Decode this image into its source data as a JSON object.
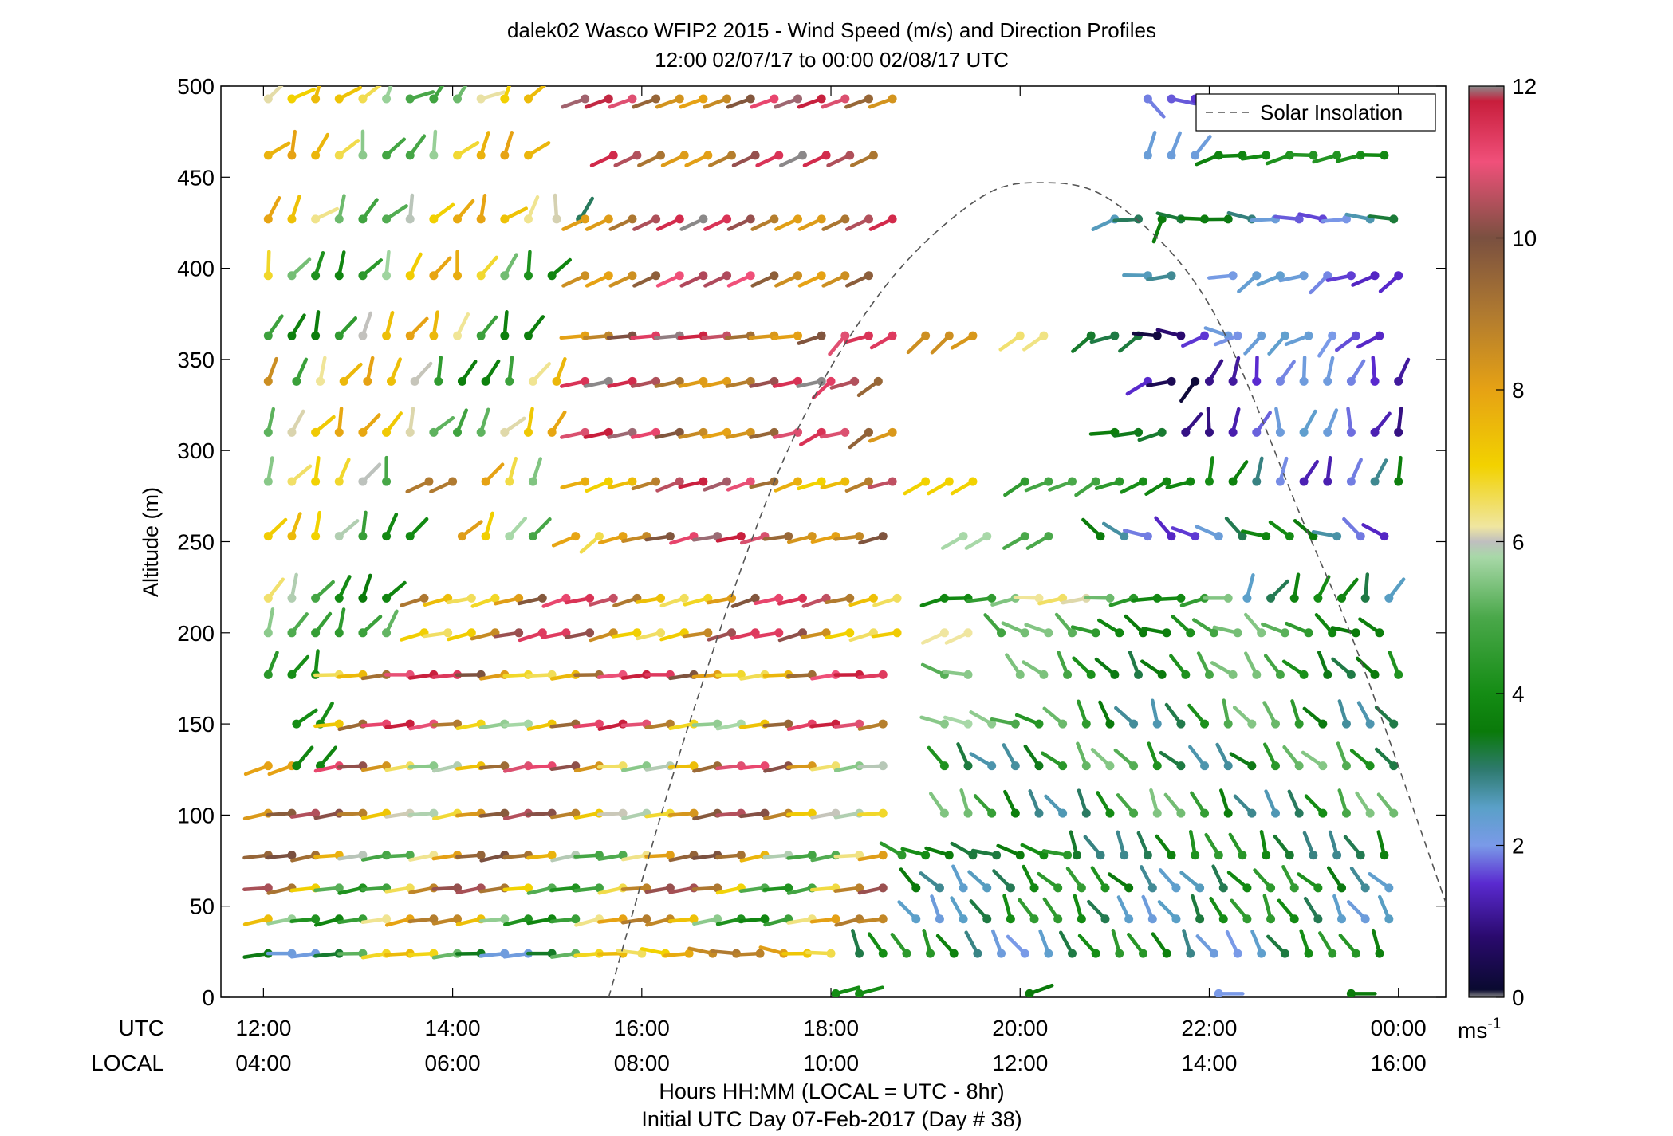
{
  "chart_data": {
    "type": "wind-barb profile (scatter with direction sticks)",
    "title_line1": "dalek02 Wasco WFIP2 2015 - Wind Speed (m/s) and Direction Profiles",
    "title_line2": "12:00 02/07/17 to 00:00 02/08/17  UTC",
    "ylabel": "Altitude (m)",
    "ylim": [
      0,
      500
    ],
    "yticks": [
      "0",
      "50",
      "100",
      "150",
      "200",
      "250",
      "300",
      "350",
      "400",
      "450",
      "500"
    ],
    "xlim_hours": [
      11.55,
      24.5
    ],
    "x_row_label_utc": "UTC",
    "x_row_label_local": "LOCAL",
    "xticks_utc": [
      "12:00",
      "14:00",
      "16:00",
      "18:00",
      "20:00",
      "22:00",
      "00:00"
    ],
    "xticks_local": [
      "04:00",
      "06:00",
      "08:00",
      "10:00",
      "12:00",
      "14:00",
      "16:00"
    ],
    "xlabel_line1": "Hours HH:MM  (LOCAL = UTC - 8hr)",
    "xlabel_line2": "Initial UTC Day 07-Feb-2017 (Day # 38)",
    "legend": {
      "label": "Solar Insolation",
      "placement": "top-right",
      "style": "dashed gray line"
    },
    "colorbar": {
      "range": [
        0,
        12
      ],
      "ticks": [
        "0",
        "2",
        "4",
        "6",
        "8",
        "10",
        "12"
      ],
      "unit_label": "ms",
      "unit_exponent": "-1",
      "stops": [
        {
          "v": 0.0,
          "c": "#8a8a8a"
        },
        {
          "v": 0.1,
          "c": "#0a0a30"
        },
        {
          "v": 0.8,
          "c": "#2a0a6e"
        },
        {
          "v": 1.5,
          "c": "#5a2ad0"
        },
        {
          "v": 2.0,
          "c": "#7a9ae8"
        },
        {
          "v": 2.5,
          "c": "#5aa0c8"
        },
        {
          "v": 3.0,
          "c": "#2e7a6e"
        },
        {
          "v": 3.5,
          "c": "#0a7a0a"
        },
        {
          "v": 4.0,
          "c": "#148c14"
        },
        {
          "v": 5.0,
          "c": "#4aa84a"
        },
        {
          "v": 5.8,
          "c": "#a8d8a8"
        },
        {
          "v": 6.0,
          "c": "#bfbfbf"
        },
        {
          "v": 6.2,
          "c": "#f0e6a0"
        },
        {
          "v": 7.0,
          "c": "#f2d200"
        },
        {
          "v": 8.0,
          "c": "#e6a214"
        },
        {
          "v": 9.0,
          "c": "#b07a30"
        },
        {
          "v": 10.0,
          "c": "#7a5040"
        },
        {
          "v": 11.0,
          "c": "#f0507a"
        },
        {
          "v": 11.8,
          "c": "#c81e3c"
        },
        {
          "v": 12.0,
          "c": "#8a8a8a"
        }
      ]
    },
    "solar_insolation_curve": {
      "style": "dashed",
      "points_hour_alt": [
        [
          15.65,
          0
        ],
        [
          16.5,
          150
        ],
        [
          17.5,
          295
        ],
        [
          18.5,
          385
        ],
        [
          19.5,
          436
        ],
        [
          20.2,
          447
        ],
        [
          21.0,
          436
        ],
        [
          22.0,
          380
        ],
        [
          23.0,
          260
        ],
        [
          23.6,
          185
        ],
        [
          24.5,
          52
        ]
      ]
    },
    "rows": [
      {
        "alt": 493,
        "segments": [
          [
            12.05,
            14.85,
            45,
            4.8,
            7.5,
            30
          ],
          [
            15.4,
            18.75,
            250,
            8,
            12,
            0
          ],
          [
            21.35,
            22.05,
            120,
            1.5,
            2,
            20
          ]
        ]
      },
      {
        "alt": 462,
        "segments": [
          [
            12.05,
            14.9,
            30,
            4.8,
            8,
            30
          ],
          [
            15.7,
            18.6,
            245,
            8,
            12,
            0
          ],
          [
            21.35,
            22.0,
            25,
            2.2,
            2.4,
            15
          ],
          [
            22.1,
            23.9,
            260,
            3.7,
            4.3,
            12
          ]
        ]
      },
      {
        "alt": 427,
        "segments": [
          [
            12.05,
            14.9,
            35,
            4.8,
            8,
            30
          ],
          [
            15.1,
            15.35,
            20,
            1.3,
            10.5,
            25
          ],
          [
            15.4,
            18.75,
            245,
            8,
            12,
            0
          ],
          [
            21.0,
            21.5,
            240,
            2.2,
            3.8,
            40
          ],
          [
            21.7,
            24.0,
            275,
            1.6,
            3.6,
            10
          ]
        ]
      },
      {
        "alt": 396,
        "segments": [
          [
            12.05,
            15.25,
            25,
            3.8,
            8,
            25
          ],
          [
            15.4,
            18.6,
            245,
            8,
            12,
            0
          ],
          [
            21.35,
            21.75,
            260,
            2.5,
            3.3,
            15
          ],
          [
            22.25,
            24.0,
            245,
            1.4,
            2.4,
            20
          ]
        ]
      },
      {
        "alt": 363,
        "segments": [
          [
            12.05,
            15.0,
            25,
            3.5,
            8,
            20
          ],
          [
            15.4,
            17.8,
            265,
            8,
            12,
            0
          ],
          [
            17.9,
            18.75,
            240,
            8.5,
            11.5,
            20
          ],
          [
            19.0,
            19.5,
            230,
            7.5,
            8.5,
            10
          ],
          [
            20.0,
            20.3,
            235,
            6.2,
            6.5,
            0
          ],
          [
            20.75,
            21.3,
            240,
            3.2,
            3.9,
            15
          ],
          [
            21.45,
            22.2,
            270,
            0.2,
            2.4,
            25
          ],
          [
            22.3,
            24.0,
            230,
            1.4,
            2.4,
            20
          ]
        ]
      },
      {
        "alt": 338,
        "segments": [
          [
            12.05,
            12.2,
            20,
            8.5,
            8.5,
            0
          ],
          [
            12.35,
            15.25,
            25,
            3.5,
            8,
            20
          ],
          [
            15.4,
            17.9,
            258,
            8,
            12,
            0
          ],
          [
            18.0,
            18.7,
            240,
            8.5,
            11.5,
            15
          ],
          [
            21.35,
            21.9,
            240,
            0.2,
            3.7,
            25
          ],
          [
            22.0,
            24.0,
            15,
            1.0,
            2.2,
            20
          ]
        ]
      },
      {
        "alt": 310,
        "segments": [
          [
            12.05,
            15.25,
            30,
            4.8,
            8,
            25
          ],
          [
            15.4,
            17.8,
            258,
            8,
            12,
            0
          ],
          [
            17.9,
            18.7,
            245,
            7.5,
            11.5,
            15
          ],
          [
            21.0,
            21.6,
            260,
            3.3,
            3.8,
            10
          ],
          [
            21.75,
            24.0,
            15,
            0.9,
            2.4,
            25
          ]
        ]
      },
      {
        "alt": 283,
        "segments": [
          [
            12.05,
            13.5,
            25,
            4.0,
            7,
            25
          ],
          [
            13.75,
            14.2,
            245,
            9.0,
            9.0,
            0
          ],
          [
            14.35,
            14.85,
            25,
            5.0,
            9.0,
            20
          ],
          [
            15.4,
            18.75,
            252,
            7,
            12,
            5
          ],
          [
            19.0,
            19.6,
            240,
            7.0,
            7.0,
            0
          ],
          [
            20.05,
            21.9,
            245,
            3.8,
            5.0,
            10
          ],
          [
            22.0,
            24.0,
            20,
            1.2,
            4.0,
            15
          ]
        ]
      },
      {
        "alt": 253,
        "segments": [
          [
            12.05,
            13.6,
            25,
            3.8,
            7.5,
            25
          ],
          [
            14.1,
            14.85,
            35,
            4.8,
            8.5,
            20
          ],
          [
            15.3,
            15.75,
            245,
            6.3,
            11.5,
            20
          ],
          [
            15.8,
            18.75,
            258,
            8,
            12,
            5
          ],
          [
            19.4,
            19.7,
            240,
            5.8,
            5.8,
            0
          ],
          [
            20.05,
            20.3,
            240,
            5.0,
            5.0,
            0
          ],
          [
            20.85,
            24.0,
            300,
            1.4,
            4.0,
            20
          ]
        ]
      },
      {
        "alt": 219,
        "segments": [
          [
            12.05,
            13.35,
            30,
            3.5,
            6.5,
            20
          ],
          [
            13.7,
            18.75,
            255,
            6.5,
            11.5,
            5
          ],
          [
            19.2,
            22.3,
            262,
            3.8,
            6.5,
            10
          ],
          [
            22.4,
            24.0,
            25,
            2.0,
            4.0,
            20
          ]
        ]
      },
      {
        "alt": 200,
        "segments": [
          [
            12.05,
            13.5,
            30,
            4.5,
            6.0,
            20
          ],
          [
            13.7,
            18.75,
            257,
            6.5,
            11.5,
            5
          ],
          [
            19.2,
            19.6,
            245,
            6.2,
            6.2,
            0
          ],
          [
            19.8,
            24.0,
            300,
            3.5,
            5.5,
            20
          ]
        ]
      },
      {
        "alt": 177,
        "segments": [
          [
            12.05,
            12.7,
            25,
            4.0,
            5.5,
            20
          ],
          [
            12.8,
            18.75,
            265,
            6.5,
            11.8,
            5
          ],
          [
            19.2,
            19.6,
            285,
            4.5,
            5.8,
            10
          ],
          [
            20.0,
            24.0,
            320,
            3.2,
            5.5,
            20
          ]
        ]
      },
      {
        "alt": 150,
        "segments": [
          [
            12.35,
            12.75,
            40,
            4.0,
            4.8,
            15
          ],
          [
            12.8,
            18.75,
            262,
            5.5,
            11.8,
            5
          ],
          [
            19.2,
            20.3,
            290,
            3.8,
            5.8,
            10
          ],
          [
            20.45,
            24.0,
            330,
            2.6,
            5.5,
            20
          ]
        ]
      },
      {
        "alt": 127,
        "segments": [
          [
            12.05,
            12.35,
            250,
            8.0,
            8.0,
            0
          ],
          [
            12.35,
            12.6,
            40,
            3.8,
            3.8,
            0
          ],
          [
            12.8,
            18.75,
            262,
            5.5,
            11.2,
            5
          ],
          [
            19.2,
            24.0,
            320,
            2.6,
            5.5,
            20
          ]
        ]
      },
      {
        "alt": 101,
        "segments": [
          [
            12.05,
            18.75,
            262,
            5.8,
            10.5,
            5
          ],
          [
            19.2,
            24.0,
            330,
            2.6,
            5.5,
            15
          ]
        ]
      },
      {
        "alt": 78,
        "segments": [
          [
            12.05,
            18.6,
            262,
            4.8,
            10.0,
            5
          ],
          [
            18.75,
            20.5,
            290,
            3.2,
            4.6,
            10
          ],
          [
            20.6,
            24.0,
            335,
            2.8,
            4.5,
            15
          ]
        ]
      },
      {
        "alt": 60,
        "segments": [
          [
            12.05,
            18.75,
            262,
            4.2,
            10.5,
            5
          ],
          [
            18.9,
            24.0,
            320,
            2.4,
            4.6,
            15
          ]
        ]
      },
      {
        "alt": 43,
        "segments": [
          [
            12.05,
            18.75,
            260,
            3.8,
            9.0,
            5
          ],
          [
            18.9,
            24.0,
            330,
            2.2,
            4.6,
            15
          ]
        ]
      },
      {
        "alt": 24,
        "segments": [
          [
            12.05,
            15.8,
            265,
            2.0,
            7.5,
            5
          ],
          [
            16.0,
            18.1,
            275,
            6.5,
            9.0,
            10
          ],
          [
            18.3,
            24.0,
            330,
            2.0,
            4.5,
            15
          ]
        ]
      },
      {
        "alt": 2,
        "segments": [
          [
            18.05,
            18.3,
            75,
            4.0,
            4.0,
            0
          ],
          [
            20.1,
            20.3,
            70,
            3.5,
            3.5,
            0
          ],
          [
            22.1,
            22.3,
            90,
            2.0,
            2.0,
            0
          ],
          [
            23.5,
            23.7,
            90,
            3.5,
            3.5,
            0
          ]
        ]
      }
    ]
  }
}
